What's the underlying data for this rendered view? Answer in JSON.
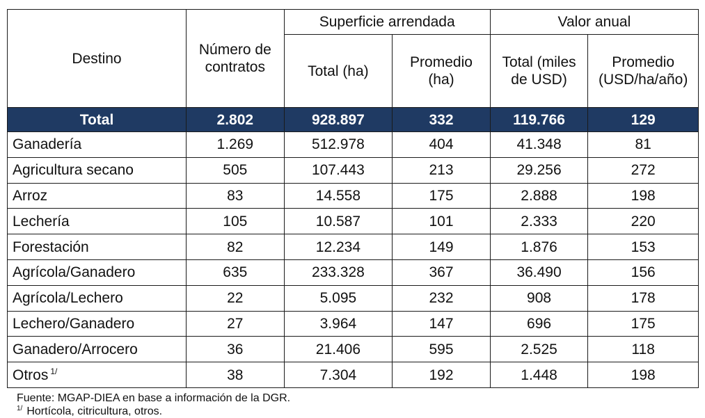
{
  "header": {
    "destino": "Destino",
    "contratos": "Número de contratos",
    "superficie_group": "Superficie arrendada",
    "valor_group": "Valor anual",
    "sup_total": "Total (ha)",
    "sup_promedio": "Promedio (ha)",
    "val_total": "Total (miles de USD)",
    "val_promedio": "Promedio (USD/ha/año)"
  },
  "total_row": {
    "label": "Total",
    "contratos": "2.802",
    "sup_total": "928.897",
    "sup_promedio": "332",
    "val_total": "119.766",
    "val_promedio": "129"
  },
  "rows": [
    {
      "label": "Ganadería",
      "contratos": "1.269",
      "sup_total": "512.978",
      "sup_promedio": "404",
      "val_total": "41.348",
      "val_promedio": "81"
    },
    {
      "label": "Agricultura secano",
      "contratos": "505",
      "sup_total": "107.443",
      "sup_promedio": "213",
      "val_total": "29.256",
      "val_promedio": "272"
    },
    {
      "label": "Arroz",
      "contratos": "83",
      "sup_total": "14.558",
      "sup_promedio": "175",
      "val_total": "2.888",
      "val_promedio": "198"
    },
    {
      "label": "Lechería",
      "contratos": "105",
      "sup_total": "10.587",
      "sup_promedio": "101",
      "val_total": "2.333",
      "val_promedio": "220"
    },
    {
      "label": "Forestación",
      "contratos": "82",
      "sup_total": "12.234",
      "sup_promedio": "149",
      "val_total": "1.876",
      "val_promedio": "153"
    },
    {
      "label": "Agrícola/Ganadero",
      "contratos": "635",
      "sup_total": "233.328",
      "sup_promedio": "367",
      "val_total": "36.490",
      "val_promedio": "156"
    },
    {
      "label": "Agrícola/Lechero",
      "contratos": "22",
      "sup_total": "5.095",
      "sup_promedio": "232",
      "val_total": "908",
      "val_promedio": "178"
    },
    {
      "label": "Lechero/Ganadero",
      "contratos": "27",
      "sup_total": "3.964",
      "sup_promedio": "147",
      "val_total": "696",
      "val_promedio": "175"
    },
    {
      "label": "Ganadero/Arrocero",
      "contratos": "36",
      "sup_total": "21.406",
      "sup_promedio": "595",
      "val_total": "2.525",
      "val_promedio": "118"
    },
    {
      "label": "Otros",
      "label_sup": "1/",
      "contratos": "38",
      "sup_total": "7.304",
      "sup_promedio": "192",
      "val_total": "1.448",
      "val_promedio": "198"
    }
  ],
  "footnotes": {
    "source": "Fuente: MGAP-DIEA en base a información de la DGR.",
    "note_mark": "1/",
    "note_text": "Hortícola, citricultura, otros."
  },
  "colors": {
    "total_row_bg": "#1f3a63",
    "total_row_text": "#ffffff"
  }
}
